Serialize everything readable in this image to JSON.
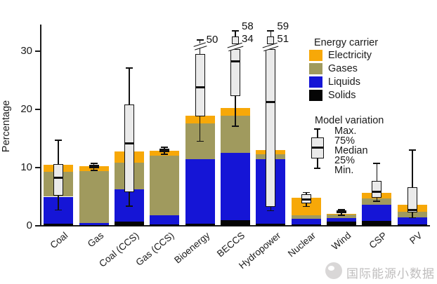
{
  "watermark": {
    "text": "国际能源小数据"
  },
  "colors": {
    "electricity": "#F7A808",
    "gases": "#A09A5E",
    "liquids": "#1515D6",
    "solids": "#050505",
    "box_fill": "#EAEAEA",
    "axis": "#1A1A1A"
  },
  "legend": {
    "energy_title": "Energy carrier",
    "items": [
      {
        "label": "Electricity",
        "color_key": "electricity"
      },
      {
        "label": "Gases",
        "color_key": "gases"
      },
      {
        "label": "Liquids",
        "color_key": "liquids"
      },
      {
        "label": "Solids",
        "color_key": "solids"
      }
    ],
    "variation_title": "Model variation",
    "variation_labels": [
      "Max.",
      "75%",
      "Median",
      "25%",
      "Min."
    ]
  },
  "chart_data": {
    "type": "bar",
    "subtype": "stacked-bars-with-boxplots",
    "ylabel": "Percentage",
    "ylim": [
      0,
      34.6
    ],
    "yticks": [
      0,
      10,
      20,
      30
    ],
    "grid": false,
    "legend_position": "upper-right",
    "categories": [
      "Coal",
      "Gas",
      "Coal (CCS)",
      "Gas (CCS)",
      "Bioenergy",
      "BECCS",
      "Hydropower",
      "Nuclear",
      "Wind",
      "CSP",
      "PV"
    ],
    "series": [
      {
        "name": "Solids",
        "color_key": "solids",
        "values": [
          0.4,
          0.1,
          0.7,
          0.2,
          0.4,
          1.0,
          0.4,
          0.3,
          0.7,
          0.9,
          0.3
        ]
      },
      {
        "name": "Liquids",
        "color_key": "liquids",
        "values": [
          4.6,
          0.4,
          5.6,
          1.6,
          11.0,
          11.5,
          11.1,
          0.9,
          0.6,
          2.7,
          1.2
        ]
      },
      {
        "name": "Gases",
        "color_key": "gases",
        "values": [
          4.3,
          8.9,
          4.5,
          10.3,
          6.2,
          6.4,
          0.8,
          0.6,
          0.6,
          1.1,
          0.9
        ]
      },
      {
        "name": "Electricity",
        "color_key": "electricity",
        "values": [
          1.2,
          0.8,
          2.0,
          0.8,
          1.3,
          1.4,
          0.7,
          3.0,
          0.2,
          1.0,
          1.2
        ]
      }
    ],
    "boxplots": [
      {
        "category": "Coal",
        "min": 2.8,
        "q1": 5.2,
        "median": 8.2,
        "q3": 10.6,
        "max": 14.8,
        "broken": null
      },
      {
        "category": "Gas",
        "min": 9.6,
        "q1": 9.9,
        "median": 10.2,
        "q3": 10.5,
        "max": 10.8,
        "broken": null
      },
      {
        "category": "Coal (CCS)",
        "min": 3.5,
        "q1": 5.8,
        "median": 14.2,
        "q3": 20.8,
        "max": 27.2,
        "broken": null
      },
      {
        "category": "Gas (CCS)",
        "min": 12.4,
        "q1": 12.7,
        "median": 13.0,
        "q3": 13.3,
        "max": 13.6,
        "broken": null
      },
      {
        "category": "Bioenergy",
        "min": 14.6,
        "q1": 18.8,
        "median": 23.8,
        "q3": 29.5,
        "max": 50,
        "broken": "max"
      },
      {
        "category": "BECCS",
        "min": 17.2,
        "q1": 22.3,
        "median": 28.2,
        "q3": 34,
        "max": 58,
        "broken": "q3"
      },
      {
        "category": "Hydropower",
        "min": 2.7,
        "q1": 3.2,
        "median": 21.3,
        "q3": 51,
        "max": 59,
        "broken": "q3"
      },
      {
        "category": "Nuclear",
        "min": 3.4,
        "q1": 3.9,
        "median": 4.5,
        "q3": 5.4,
        "max": 5.8,
        "broken": null
      },
      {
        "category": "Wind",
        "min": 1.9,
        "q1": 2.2,
        "median": 2.4,
        "q3": 2.6,
        "max": 2.9,
        "broken": null
      },
      {
        "category": "CSP",
        "min": 4.3,
        "q1": 4.8,
        "median": 5.8,
        "q3": 7.7,
        "max": 10.8,
        "broken": null
      },
      {
        "category": "PV",
        "min": 1.5,
        "q1": 2.3,
        "median": 2.7,
        "q3": 6.6,
        "max": 13.1,
        "broken": null
      }
    ]
  }
}
